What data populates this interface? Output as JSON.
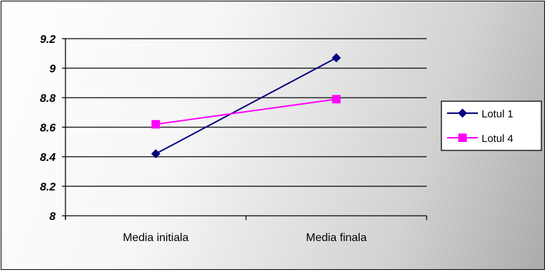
{
  "chart_data": {
    "type": "line",
    "categories": [
      "Media initiala",
      "Media finala"
    ],
    "ylim": [
      8,
      9.2
    ],
    "yticks": [
      "8",
      "8.2",
      "8.4",
      "8.6",
      "8.8",
      "9",
      "9.2"
    ],
    "grid": true,
    "legend_position": "right",
    "series": [
      {
        "name": "Lotul 1",
        "values": [
          8.42,
          9.07
        ],
        "color": "#000080",
        "marker": "diamond"
      },
      {
        "name": "Lotul 4",
        "values": [
          8.62,
          8.79
        ],
        "color": "#ff00ff",
        "marker": "square"
      }
    ]
  }
}
